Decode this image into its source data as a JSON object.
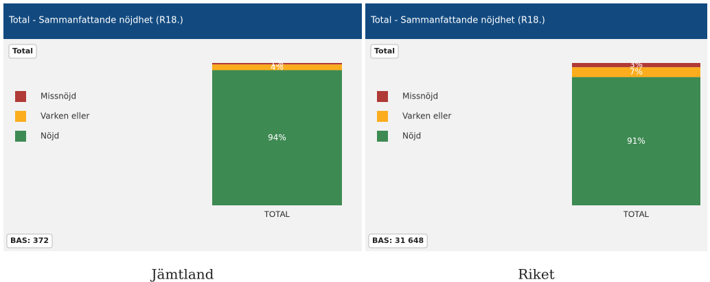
{
  "chart_data": [
    {
      "type": "stacked-bar",
      "title": "Total - Sammanfattande nöjdhet (R18.)",
      "button": "Total",
      "base": "BAS: 372",
      "caption": "Jämtland",
      "categories": [
        "TOTAL"
      ],
      "series": [
        {
          "name": "Missnöjd",
          "color": "#b03a36",
          "values": [
            1
          ],
          "value_labels": [
            "1%"
          ]
        },
        {
          "name": "Varken eller",
          "color": "#fbad1e",
          "values": [
            4
          ],
          "value_labels": [
            "4%"
          ]
        },
        {
          "name": "Nöjd",
          "color": "#3e8a53",
          "values": [
            94
          ],
          "value_labels": [
            "94%"
          ]
        }
      ]
    },
    {
      "type": "stacked-bar",
      "title": "Total - Sammanfattande nöjdhet (R18.)",
      "button": "Total",
      "base": "BAS: 31 648",
      "caption": "Riket",
      "categories": [
        "TOTAL"
      ],
      "series": [
        {
          "name": "Missnöjd",
          "color": "#b03a36",
          "values": [
            3
          ],
          "value_labels": [
            "3%"
          ]
        },
        {
          "name": "Varken eller",
          "color": "#fbad1e",
          "values": [
            7
          ],
          "value_labels": [
            "7%"
          ]
        },
        {
          "name": "Nöjd",
          "color": "#3e8a53",
          "values": [
            91
          ],
          "value_labels": [
            "91%"
          ]
        }
      ]
    }
  ]
}
